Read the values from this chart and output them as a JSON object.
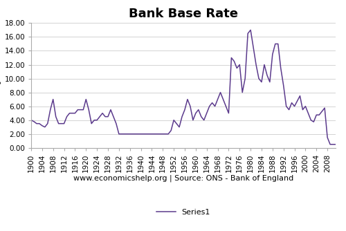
{
  "title": "Bank Base Rate",
  "ylabel": "%",
  "xlabel": "www.economicshelp.org | Source: ONS - Bank of England",
  "legend_label": "Series1",
  "line_color": "#5b3a8c",
  "background_color": "#ffffff",
  "ylim": [
    0,
    18
  ],
  "yticks": [
    0.0,
    2.0,
    4.0,
    6.0,
    8.0,
    10.0,
    12.0,
    14.0,
    16.0,
    18.0
  ],
  "years": [
    1900,
    1901,
    1902,
    1903,
    1904,
    1905,
    1906,
    1907,
    1908,
    1909,
    1910,
    1911,
    1912,
    1913,
    1914,
    1915,
    1916,
    1917,
    1918,
    1919,
    1920,
    1921,
    1922,
    1923,
    1924,
    1925,
    1926,
    1927,
    1928,
    1929,
    1930,
    1931,
    1932,
    1933,
    1934,
    1935,
    1936,
    1937,
    1938,
    1939,
    1940,
    1941,
    1942,
    1943,
    1944,
    1945,
    1946,
    1947,
    1948,
    1949,
    1950,
    1951,
    1952,
    1953,
    1954,
    1955,
    1956,
    1957,
    1958,
    1959,
    1960,
    1961,
    1962,
    1963,
    1964,
    1965,
    1966,
    1967,
    1968,
    1969,
    1970,
    1971,
    1972,
    1973,
    1974,
    1975,
    1976,
    1977,
    1978,
    1979,
    1980,
    1981,
    1982,
    1983,
    1984,
    1985,
    1986,
    1987,
    1988,
    1989,
    1990,
    1991,
    1992,
    1993,
    1994,
    1995,
    1996,
    1997,
    1998,
    1999,
    2000,
    2001,
    2002,
    2003,
    2004,
    2005,
    2006,
    2007,
    2008,
    2009,
    2010,
    2011
  ],
  "values": [
    4.0,
    3.8,
    3.5,
    3.5,
    3.2,
    3.0,
    3.5,
    5.5,
    7.0,
    4.5,
    3.5,
    3.5,
    3.5,
    4.5,
    5.0,
    5.0,
    5.0,
    5.5,
    5.5,
    5.5,
    7.0,
    5.5,
    3.5,
    4.0,
    4.0,
    4.5,
    5.0,
    4.5,
    4.5,
    5.5,
    4.5,
    3.5,
    2.0,
    2.0,
    2.0,
    2.0,
    2.0,
    2.0,
    2.0,
    2.0,
    2.0,
    2.0,
    2.0,
    2.0,
    2.0,
    2.0,
    2.0,
    2.0,
    2.0,
    2.0,
    2.0,
    2.5,
    4.0,
    3.5,
    3.0,
    4.5,
    5.5,
    7.0,
    6.0,
    4.0,
    5.0,
    5.5,
    4.5,
    4.0,
    5.0,
    6.0,
    6.5,
    6.0,
    7.0,
    8.0,
    7.0,
    6.0,
    5.0,
    13.0,
    12.5,
    11.5,
    12.0,
    8.0,
    10.0,
    16.5,
    17.0,
    14.5,
    12.0,
    10.0,
    9.5,
    12.0,
    10.5,
    9.5,
    13.5,
    15.0,
    15.0,
    11.5,
    9.0,
    6.0,
    5.5,
    6.5,
    6.0,
    6.75,
    7.5,
    5.5,
    6.0,
    5.0,
    4.0,
    3.75,
    4.75,
    4.75,
    5.25,
    5.75,
    1.5,
    0.5,
    0.5,
    0.5
  ],
  "title_fontsize": 13,
  "ylabel_fontsize": 8,
  "xlabel_fontsize": 8,
  "tick_fontsize": 7.5,
  "legend_fontsize": 8
}
